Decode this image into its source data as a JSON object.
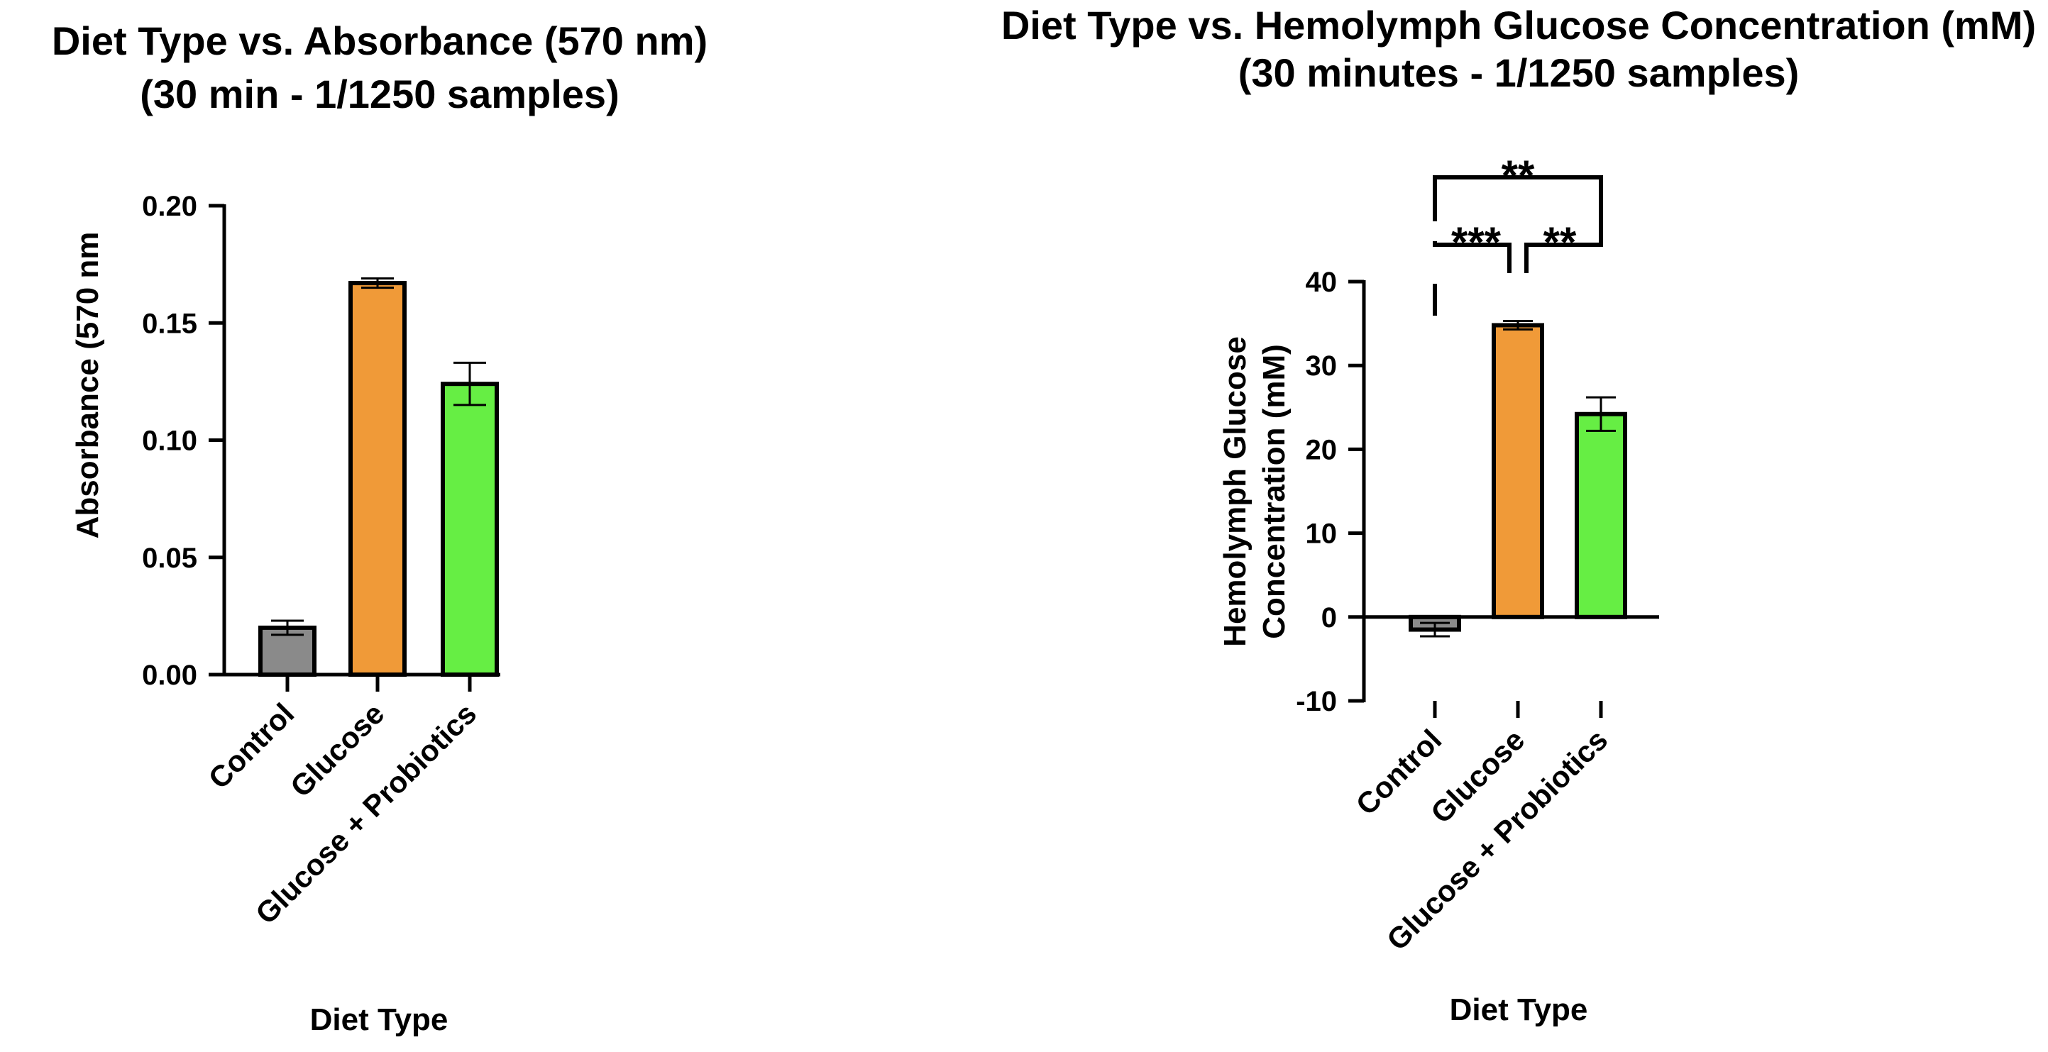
{
  "chart_data": [
    {
      "id": "left",
      "type": "bar",
      "title": [
        "Diet Type vs. Absorbance (570 nm)",
        "(30 min - 1/1250 samples)"
      ],
      "xlabel": "Diet Type",
      "ylabel": "Absorbance (570 nm",
      "ylim": [
        0,
        0.2
      ],
      "yticks": [
        0.0,
        0.05,
        0.1,
        0.15,
        0.2
      ],
      "yticklabels": [
        "0.00",
        "0.05",
        "0.10",
        "0.15",
        "0.20"
      ],
      "categories": [
        "Control",
        "Glucose",
        "Glucose + Probiotics"
      ],
      "values": [
        0.02,
        0.167,
        0.124
      ],
      "errors": [
        0.003,
        0.002,
        0.009
      ],
      "colors": [
        "#8a8a8a",
        "#f09a38",
        "#66ee44"
      ],
      "grid": false
    },
    {
      "id": "right",
      "type": "bar",
      "title": [
        "Diet Type vs. Hemolymph Glucose Concentration (mM)",
        "(30 minutes - 1/1250 samples)"
      ],
      "xlabel": "Diet Type",
      "ylabel": [
        "Hemolymph Glucose",
        "Concentration (mM)"
      ],
      "ylim": [
        -10,
        40
      ],
      "yticks": [
        -10,
        0,
        10,
        20,
        30,
        40
      ],
      "yticklabels": [
        "-10",
        "0",
        "10",
        "20",
        "30",
        "40"
      ],
      "categories": [
        "Control",
        "Glucose",
        "Glucose + Probiotics"
      ],
      "values": [
        -1.5,
        34.8,
        24.2
      ],
      "errors": [
        0.8,
        0.5,
        2.0
      ],
      "colors": [
        "#8a8a8a",
        "#f09a38",
        "#66ee44"
      ],
      "grid": false,
      "significance": [
        {
          "from": 0,
          "to": 2,
          "label": "**"
        },
        {
          "from": 0,
          "to": 1,
          "label": "***"
        },
        {
          "from": 1,
          "to": 2,
          "label": "**"
        }
      ]
    }
  ]
}
